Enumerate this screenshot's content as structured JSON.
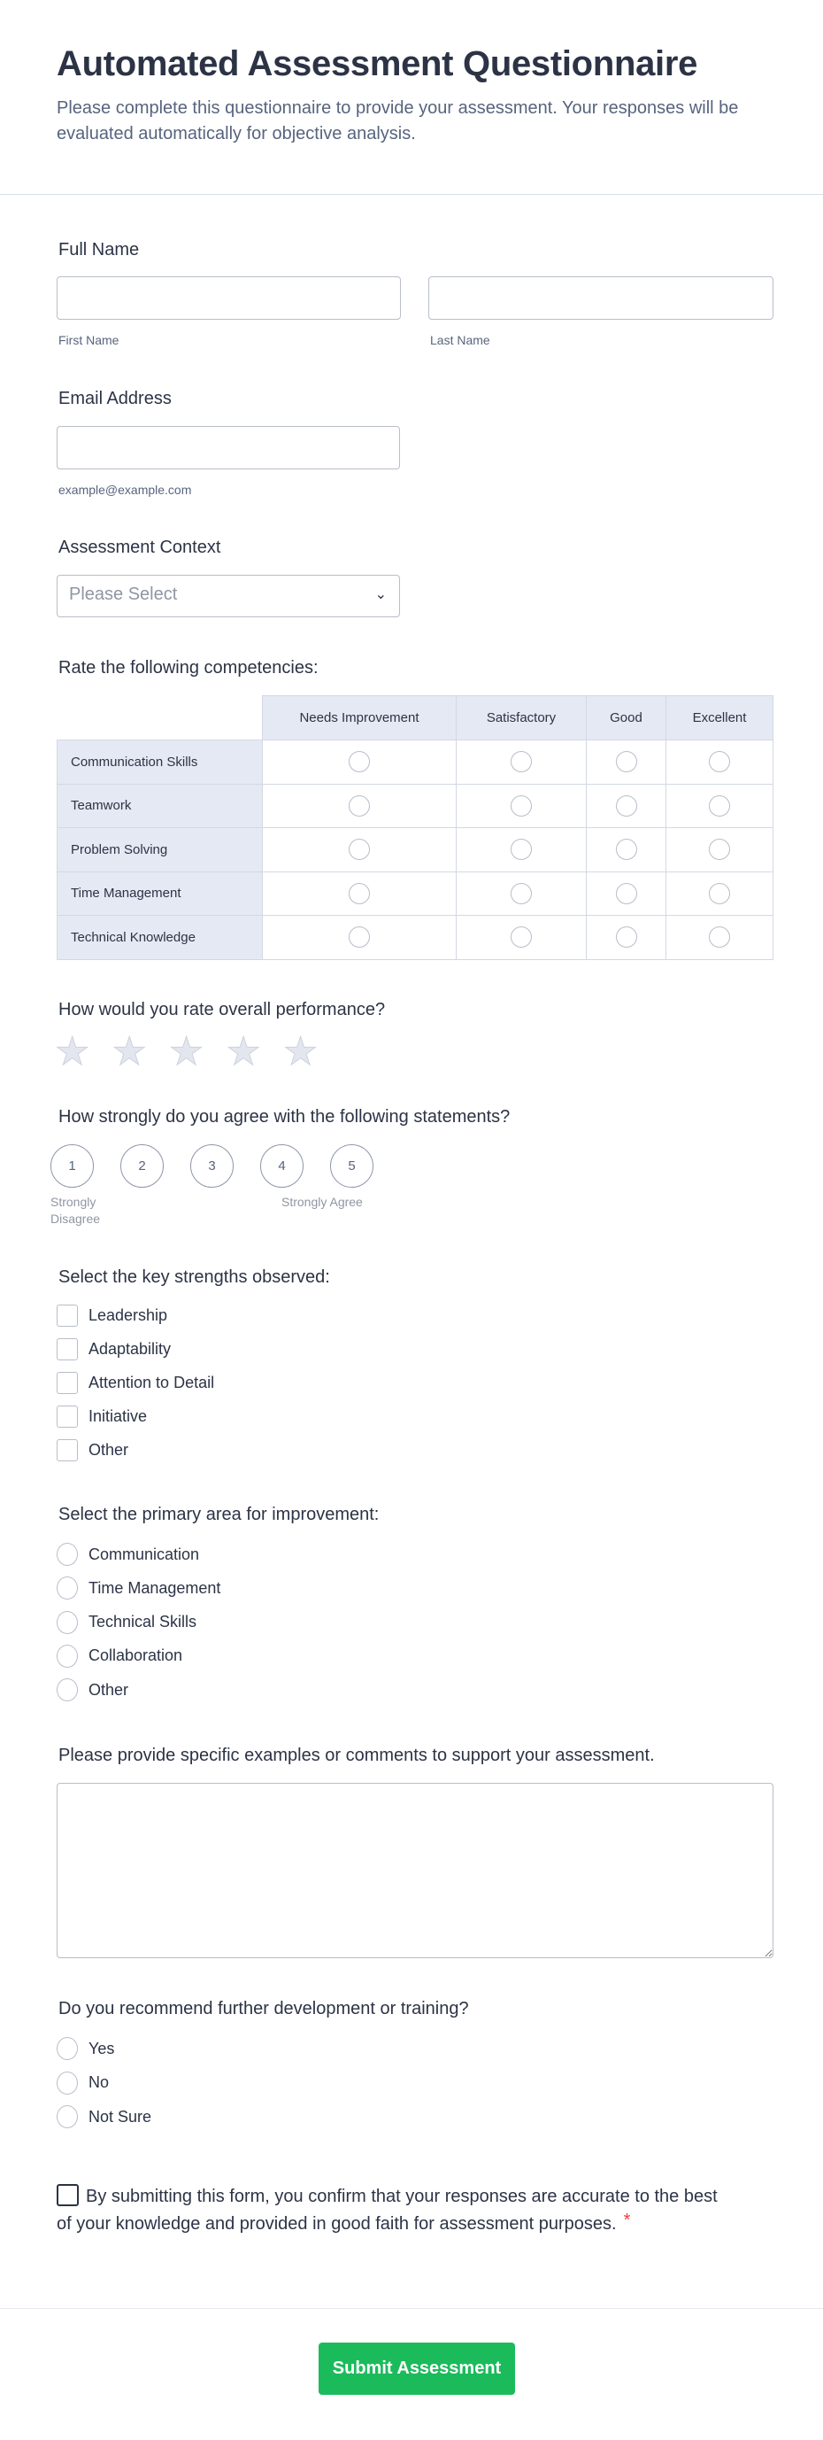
{
  "header": {
    "title": "Automated Assessment Questionnaire",
    "subtitle": "Please complete this questionnaire to provide your assessment. Your responses will be evaluated automatically for objective analysis."
  },
  "full_name": {
    "label": "Full Name",
    "first_sublabel": "First Name",
    "last_sublabel": "Last Name",
    "first_value": "",
    "last_value": ""
  },
  "email": {
    "label": "Email Address",
    "sublabel": "example@example.com",
    "value": ""
  },
  "context": {
    "label": "Assessment Context",
    "placeholder": "Please Select"
  },
  "matrix": {
    "label": "Rate the following competencies:",
    "columns": [
      "Needs Improvement",
      "Satisfactory",
      "Good",
      "Excellent"
    ],
    "rows": [
      "Communication Skills",
      "Teamwork",
      "Problem Solving",
      "Time Management",
      "Technical Knowledge"
    ]
  },
  "star_rating": {
    "label": "How would you rate overall performance?",
    "max": 5,
    "value": 0
  },
  "scale": {
    "label": "How strongly do you agree with the following statements?",
    "options": [
      "1",
      "2",
      "3",
      "4",
      "5"
    ],
    "low_label": "Strongly Disagree",
    "high_label": "Strongly Agree"
  },
  "strengths": {
    "label": "Select the key strengths observed:",
    "options": [
      "Leadership",
      "Adaptability",
      "Attention to Detail",
      "Initiative",
      "Other"
    ]
  },
  "improvement": {
    "label": "Select the primary area for improvement:",
    "options": [
      "Communication",
      "Time Management",
      "Technical Skills",
      "Collaboration",
      "Other"
    ]
  },
  "comments": {
    "label": "Please provide specific examples or comments to support your assessment.",
    "value": ""
  },
  "recommend": {
    "label": "Do you recommend further development or training?",
    "options": [
      "Yes",
      "No",
      "Not Sure"
    ]
  },
  "consent": {
    "text": "By submitting this form, you confirm that your responses are accurate to the best of your knowledge and provided in good faith for assessment purposes.",
    "required_mark": "*"
  },
  "submit": {
    "label": "Submit Assessment"
  },
  "colors": {
    "accent": "#1bbb5b",
    "required": "#f23a3c",
    "matrix_header": "#e5e9f3"
  }
}
